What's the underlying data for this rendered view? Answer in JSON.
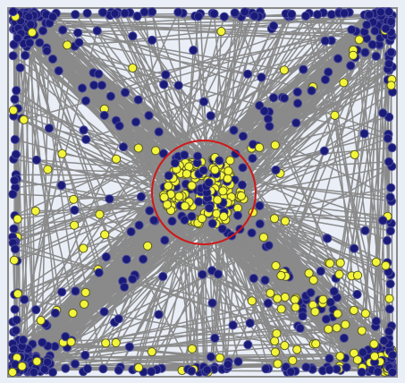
{
  "colors": {
    "background": "#e9eef7",
    "edge": "#8a8a8a",
    "frame": "#8a8a8a",
    "node_blue_fill": "#1a1a78",
    "node_blue_stroke": "#4a4a9a",
    "node_yellow_fill": "#f3f53a",
    "node_yellow_stroke": "#5a5a20",
    "highlight_circle": "#d01818"
  },
  "legend": [],
  "labels": []
}
